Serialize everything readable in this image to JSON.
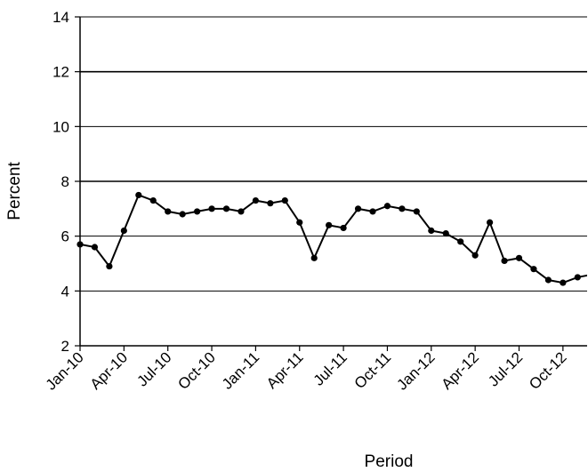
{
  "chart_data": {
    "type": "line",
    "title": "",
    "xlabel": "Period",
    "ylabel": "Percent",
    "ylim": [
      2,
      14
    ],
    "yticks": [
      2,
      4,
      6,
      8,
      10,
      12,
      14
    ],
    "grid": "horizontal",
    "x_tick_labels": [
      "Jan-10",
      "Apr-10",
      "Jul-10",
      "Oct-10",
      "Jan-11",
      "Apr-11",
      "Jul-11",
      "Oct-11",
      "Jan-12",
      "Apr-12",
      "Jul-12",
      "Oct-12"
    ],
    "x": [
      "Jan-10",
      "Feb-10",
      "Mar-10",
      "Apr-10",
      "May-10",
      "Jun-10",
      "Jul-10",
      "Aug-10",
      "Sep-10",
      "Oct-10",
      "Nov-10",
      "Dec-10",
      "Jan-11",
      "Feb-11",
      "Mar-11",
      "Apr-11",
      "May-11",
      "Jun-11",
      "Jul-11",
      "Aug-11",
      "Sep-11",
      "Oct-11",
      "Nov-11",
      "Dec-11",
      "Jan-12",
      "Feb-12",
      "Mar-12",
      "Apr-12",
      "May-12",
      "Jun-12",
      "Jul-12",
      "Aug-12",
      "Sep-12",
      "Oct-12",
      "Nov-12",
      "Dec-12"
    ],
    "series": [
      {
        "values": [
          5.7,
          5.6,
          4.9,
          6.2,
          7.5,
          7.3,
          6.9,
          6.8,
          6.9,
          7.0,
          7.0,
          6.9,
          7.3,
          7.2,
          7.3,
          6.5,
          5.2,
          6.4,
          6.3,
          7.0,
          6.9,
          7.1,
          7.0,
          6.9,
          6.2,
          6.1,
          5.8,
          5.3,
          6.5,
          5.1,
          5.2,
          4.8,
          4.4,
          4.3,
          4.5,
          4.6
        ]
      }
    ],
    "line_color": "#000000"
  }
}
